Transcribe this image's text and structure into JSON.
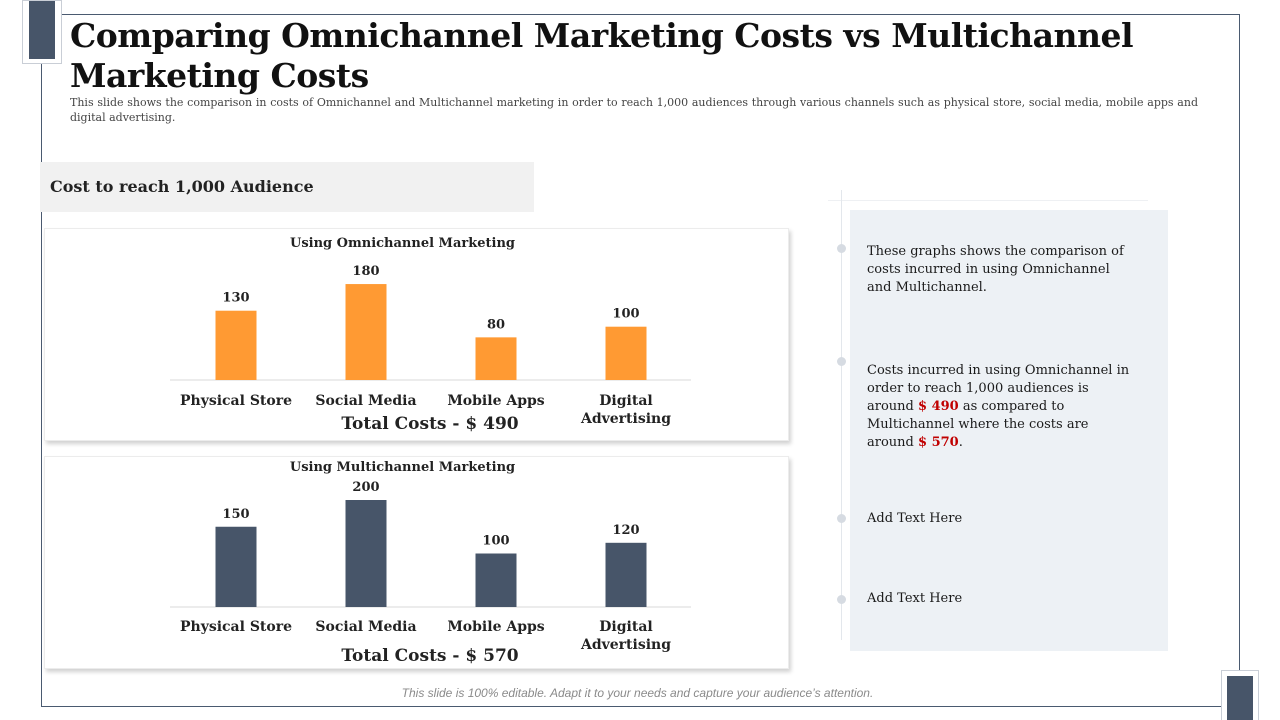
{
  "slide": {
    "title": "Comparing Omnichannel Marketing Costs vs Multichannel Marketing Costs",
    "subtitle": "This slide shows the comparison in costs of Omnichannel and Multichannel marketing in order to reach 1,000 audiences through various channels such as physical store, social media, mobile apps and digital advertising.",
    "section_heading": "Cost to reach 1,000 Audience",
    "footer": "This slide is 100% editable. Adapt it to your needs and capture your audience’s attention."
  },
  "colors": {
    "omnichannel_bar": "#ff9a33",
    "multichannel_bar": "#475569",
    "highlight": "#c00000",
    "panel_bg": "#edf1f5"
  },
  "chart_data": [
    {
      "type": "bar",
      "title": "Using Omnichannel Marketing",
      "categories": [
        "Physical Store",
        "Social Media",
        "Mobile Apps",
        "Digital Advertising"
      ],
      "values": [
        130,
        180,
        80,
        100
      ],
      "total_label": "Total Costs - $ 490",
      "ylim": [
        0,
        200
      ]
    },
    {
      "type": "bar",
      "title": "Using Multichannel Marketing",
      "categories": [
        "Physical Store",
        "Social Media",
        "Mobile Apps",
        "Digital Advertising"
      ],
      "values": [
        150,
        200,
        100,
        120
      ],
      "total_label": "Total Costs - $ 570",
      "ylim": [
        0,
        200
      ]
    }
  ],
  "notes": [
    {
      "parts": [
        {
          "text": "These graphs shows the comparison of costs incurred in using Omnichannel and Multichannel.",
          "highlight": false
        }
      ]
    },
    {
      "parts": [
        {
          "text": "Costs incurred in using Omnichannel in order to reach 1,000 audiences is around ",
          "highlight": false
        },
        {
          "text": "$ 490",
          "highlight": true
        },
        {
          "text": " as compared to Multichannel where the costs are around ",
          "highlight": false
        },
        {
          "text": "$ 570",
          "highlight": true
        },
        {
          "text": ".",
          "highlight": false
        }
      ]
    },
    {
      "parts": [
        {
          "text": "Add Text Here",
          "highlight": false
        }
      ]
    },
    {
      "parts": [
        {
          "text": "Add Text Here",
          "highlight": false
        }
      ]
    }
  ]
}
